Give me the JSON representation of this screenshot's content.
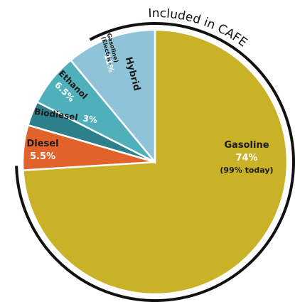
{
  "chart_data": {
    "type": "pie",
    "arc_label": "Included in CAFE",
    "slices": [
      {
        "name": "Gasoline",
        "value": 74,
        "value_label": "74%",
        "note": "(99% today)",
        "color": "#c9b227"
      },
      {
        "name": "Diesel",
        "value": 5.5,
        "value_label": "5.5%",
        "color": "#e2622b"
      },
      {
        "name": "Biodiesel",
        "value": 3,
        "value_label": "3%",
        "color": "#2d7f8a"
      },
      {
        "name": "Ethanol",
        "value": 6.5,
        "value_label": "6.5%",
        "color": "#4fb0bb"
      },
      {
        "name": "Hybrid",
        "value": 11,
        "value_label": "11%",
        "sub_label_1": "(Electric-",
        "sub_label_2": "Gasoline)",
        "color": "#8fc4d8"
      }
    ]
  }
}
